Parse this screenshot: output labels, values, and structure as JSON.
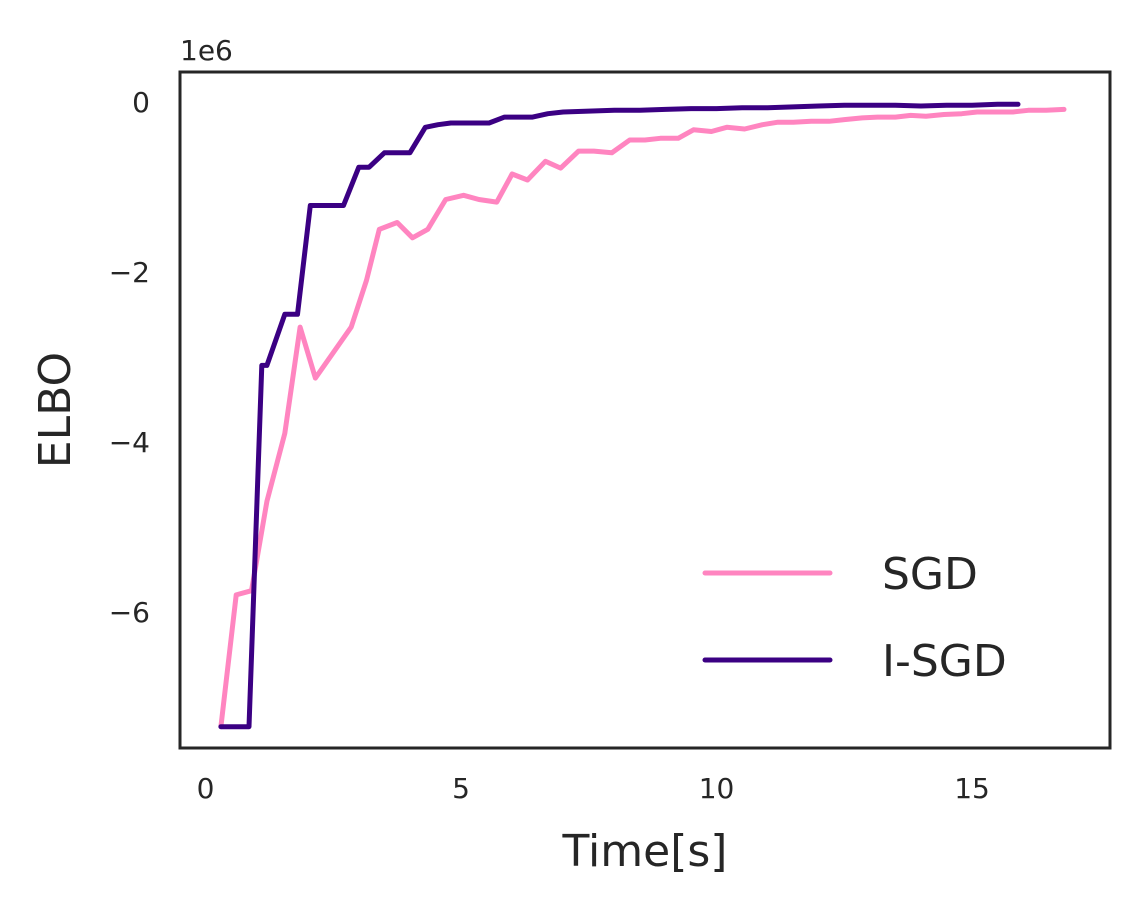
{
  "chart_data": {
    "type": "line",
    "xlabel": "Time[s]",
    "ylabel": "ELBO",
    "y_offset_label": "1e6",
    "y_scale_factor": 1000000,
    "xlim": [
      -0.5,
      17.7
    ],
    "ylim": [
      -7.6,
      0.35
    ],
    "x_ticks": [
      0,
      5,
      10,
      15
    ],
    "y_ticks": [
      0,
      -2,
      -4,
      -6
    ],
    "y_tick_labels": [
      "0",
      "−2",
      "−4",
      "−6"
    ],
    "grid": false,
    "legend_position": "lower-right",
    "series": [
      {
        "name": "SGD",
        "color": "#ff85c0",
        "x": [
          0.3,
          0.6,
          0.9,
          1.2,
          1.55,
          1.85,
          2.15,
          2.5,
          2.85,
          3.15,
          3.4,
          3.75,
          4.05,
          4.35,
          4.7,
          5.05,
          5.35,
          5.7,
          6.0,
          6.3,
          6.65,
          6.95,
          7.3,
          7.6,
          7.95,
          8.3,
          8.6,
          8.9,
          9.25,
          9.55,
          9.9,
          10.2,
          10.55,
          10.9,
          11.2,
          11.5,
          11.85,
          12.2,
          12.5,
          12.85,
          13.15,
          13.5,
          13.8,
          14.1,
          14.45,
          14.8,
          15.1,
          15.45,
          15.8,
          16.1,
          16.45,
          16.8
        ],
        "y": [
          -7.35,
          -5.8,
          -5.75,
          -4.7,
          -3.9,
          -2.65,
          -3.25,
          -2.95,
          -2.65,
          -2.1,
          -1.5,
          -1.42,
          -1.6,
          -1.5,
          -1.15,
          -1.1,
          -1.15,
          -1.18,
          -0.85,
          -0.92,
          -0.7,
          -0.78,
          -0.58,
          -0.58,
          -0.6,
          -0.45,
          -0.45,
          -0.43,
          -0.43,
          -0.33,
          -0.35,
          -0.3,
          -0.32,
          -0.27,
          -0.24,
          -0.24,
          -0.23,
          -0.23,
          -0.21,
          -0.19,
          -0.18,
          -0.18,
          -0.16,
          -0.17,
          -0.15,
          -0.14,
          -0.12,
          -0.12,
          -0.12,
          -0.1,
          -0.1,
          -0.09
        ]
      },
      {
        "name": "I-SGD",
        "color": "#3b0083",
        "x": [
          0.3,
          0.85,
          1.1,
          1.2,
          1.55,
          1.8,
          2.05,
          2.3,
          2.7,
          3.0,
          3.2,
          3.5,
          3.75,
          4.0,
          4.3,
          4.55,
          4.8,
          5.1,
          5.55,
          5.85,
          6.1,
          6.4,
          6.7,
          7.0,
          7.5,
          8.0,
          8.5,
          9.0,
          9.5,
          10.0,
          10.5,
          11.0,
          11.5,
          12.0,
          12.5,
          13.0,
          13.5,
          14.0,
          14.5,
          15.0,
          15.5,
          15.9
        ],
        "y": [
          -7.35,
          -7.35,
          -3.1,
          -3.1,
          -2.5,
          -2.5,
          -1.22,
          -1.22,
          -1.22,
          -0.77,
          -0.77,
          -0.6,
          -0.6,
          -0.6,
          -0.3,
          -0.27,
          -0.25,
          -0.25,
          -0.25,
          -0.18,
          -0.18,
          -0.18,
          -0.14,
          -0.12,
          -0.11,
          -0.1,
          -0.1,
          -0.09,
          -0.08,
          -0.08,
          -0.07,
          -0.07,
          -0.06,
          -0.05,
          -0.04,
          -0.04,
          -0.04,
          -0.05,
          -0.04,
          -0.04,
          -0.03,
          -0.03
        ]
      }
    ]
  }
}
